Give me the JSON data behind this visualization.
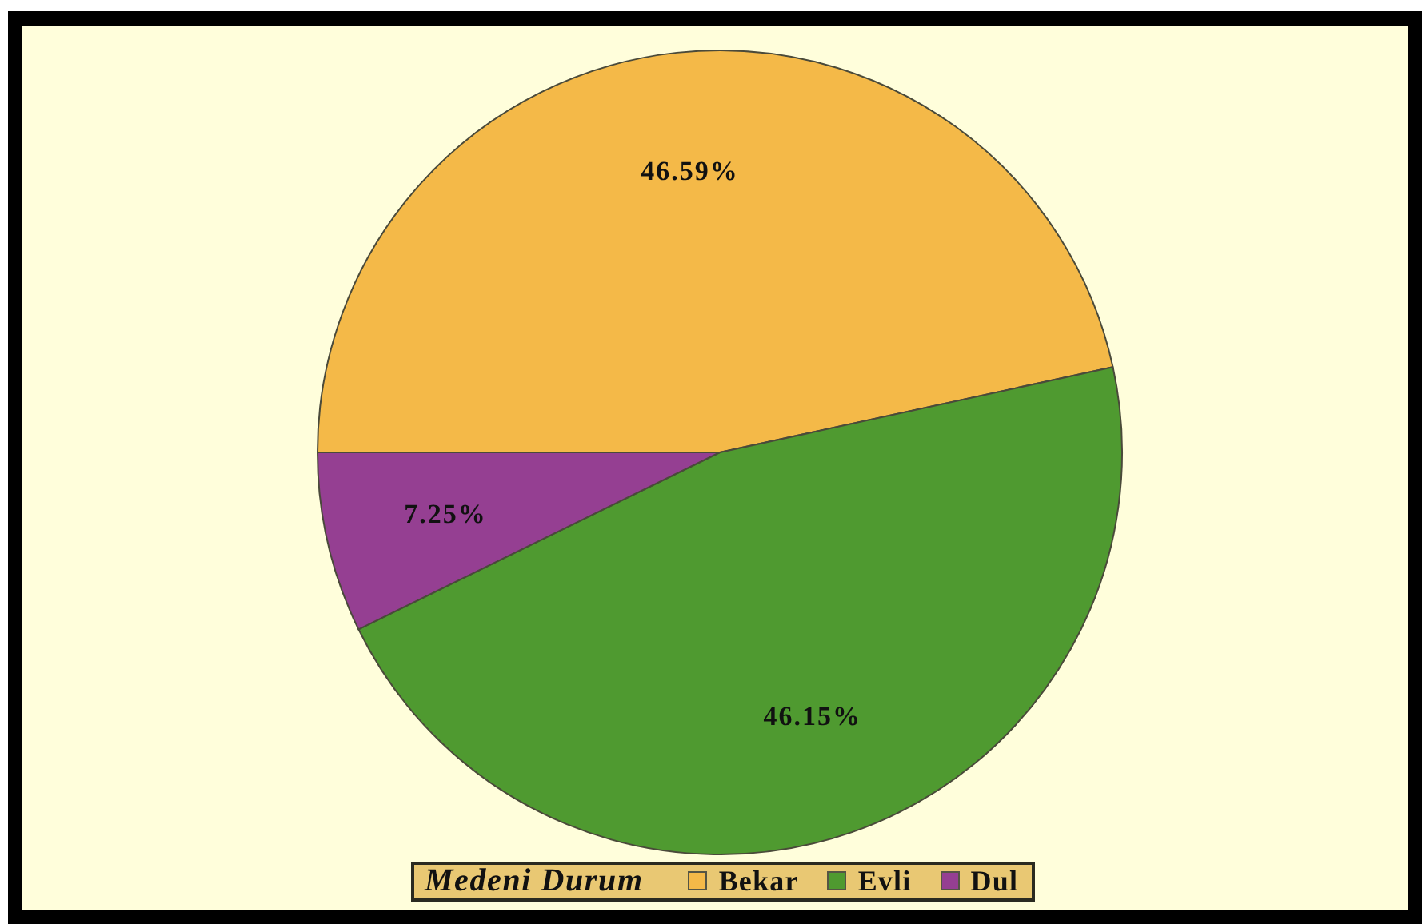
{
  "chart_data": {
    "type": "pie",
    "legend_title": "Medeni Durum",
    "categories": [
      "Bekar",
      "Evli",
      "Dul"
    ],
    "values": [
      46.59,
      46.15,
      7.25
    ],
    "colors": [
      "#f4b948",
      "#4f9a30",
      "#953f92"
    ],
    "value_labels": [
      "46.59%",
      "46.15%",
      "7.25%"
    ],
    "legend": "bottom"
  }
}
